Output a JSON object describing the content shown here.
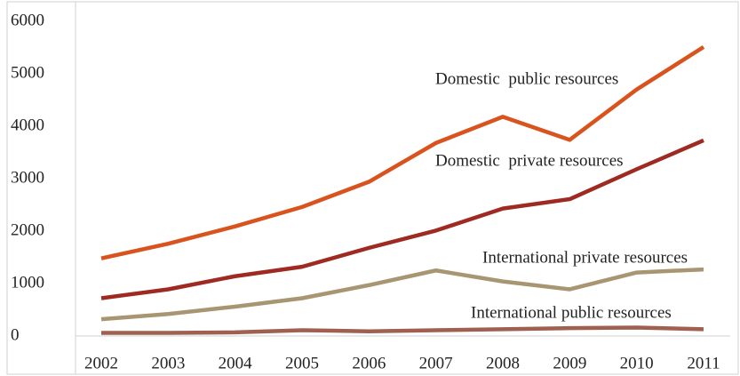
{
  "chart_data": {
    "type": "line",
    "x": [
      "2002",
      "2003",
      "2004",
      "2005",
      "2006",
      "2007",
      "2008",
      "2009",
      "2010",
      "2011"
    ],
    "series": [
      {
        "name": "Domestic  public resources",
        "color": "#d9531e",
        "values": [
          1480,
          1760,
          2090,
          2460,
          2940,
          3680,
          4180,
          3740,
          4700,
          5510
        ]
      },
      {
        "name": "Domestic  private resources",
        "color": "#9e2a22",
        "values": [
          720,
          890,
          1140,
          1320,
          1680,
          2010,
          2430,
          2610,
          3180,
          3730
        ]
      },
      {
        "name": "International private resources",
        "color": "#a89572",
        "values": [
          320,
          420,
          560,
          720,
          970,
          1250,
          1040,
          890,
          1210,
          1270
        ]
      },
      {
        "name": "International public resources",
        "color": "#a0604f",
        "values": [
          60,
          60,
          70,
          110,
          90,
          110,
          130,
          150,
          160,
          130
        ]
      }
    ],
    "ylim": [
      0,
      6000
    ],
    "yticks": [
      0,
      1000,
      2000,
      3000,
      4000,
      5000,
      6000
    ],
    "grid": false
  }
}
